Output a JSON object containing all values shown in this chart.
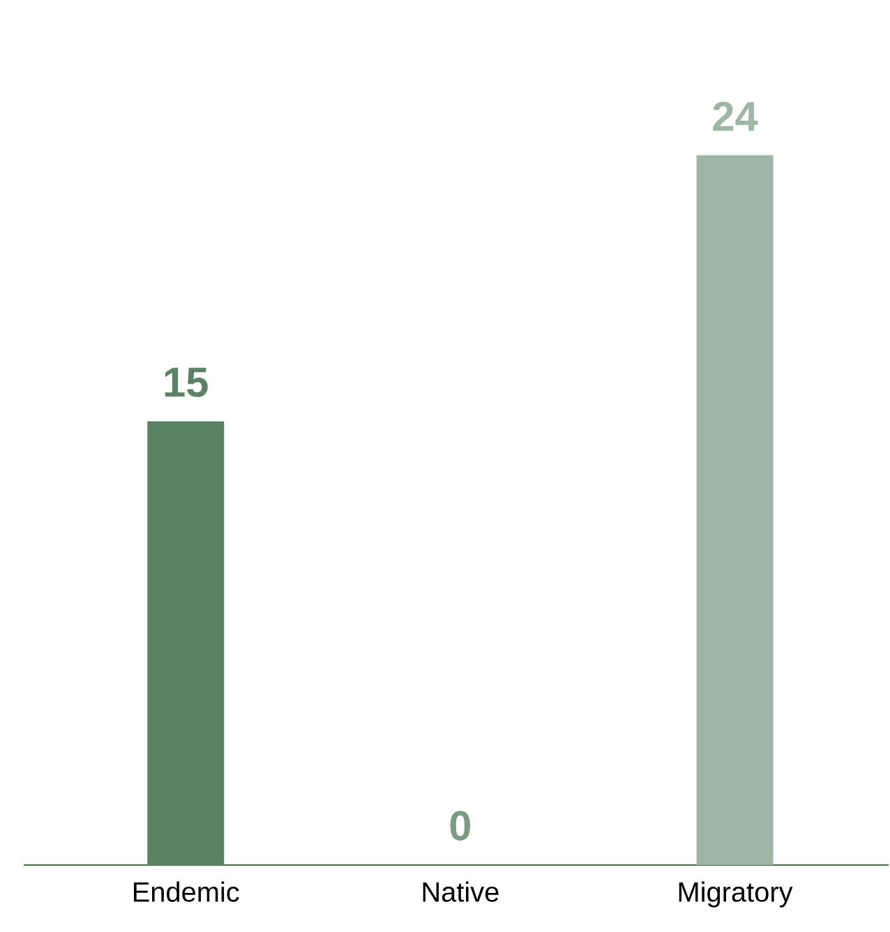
{
  "chart_data": {
    "type": "bar",
    "categories": [
      "Endemic",
      "Native",
      "Migratory"
    ],
    "values": [
      15,
      0,
      24
    ],
    "colors": [
      "#5b8264",
      "#7b9c83",
      "#9db6a5"
    ],
    "data_labels": true
  }
}
